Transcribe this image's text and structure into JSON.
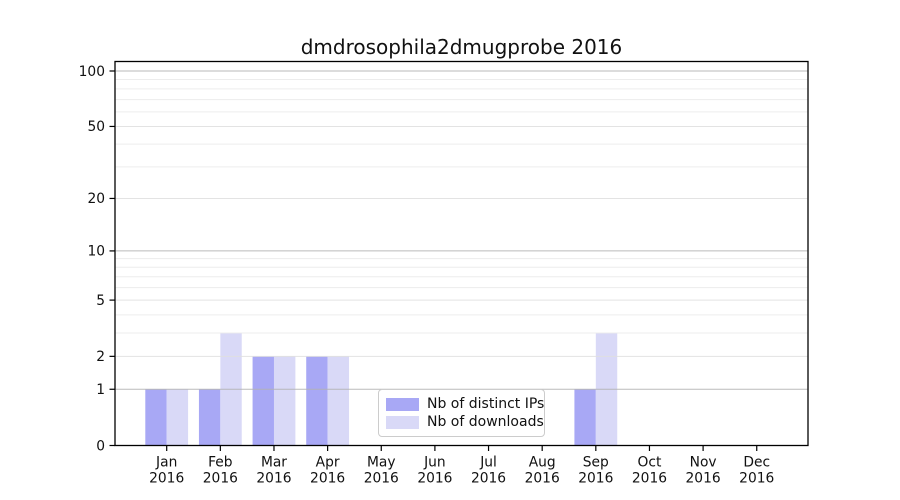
{
  "figure": {
    "background": "#ffffff"
  },
  "chart_data": {
    "type": "bar",
    "title": "dmdrosophila2dmugprobe 2016",
    "categories": [
      "Jan",
      "Feb",
      "Mar",
      "Apr",
      "May",
      "Jun",
      "Jul",
      "Aug",
      "Sep",
      "Oct",
      "Nov",
      "Dec"
    ],
    "category_year_label": "2016",
    "series": [
      {
        "name": "Nb of distinct IPs",
        "color": "#a8a8f5",
        "values": [
          1,
          1,
          2,
          2,
          0,
          0,
          0,
          0,
          1,
          0,
          0,
          0
        ]
      },
      {
        "name": "Nb of downloads",
        "color": "#d9d9f7",
        "values": [
          1,
          3,
          2,
          2,
          0,
          0,
          0,
          0,
          3,
          0,
          0,
          0
        ]
      }
    ],
    "y_scale": "log10(1+value)",
    "y_ticks": [
      0,
      1,
      2,
      5,
      10,
      20,
      50,
      100
    ],
    "y_minor_gridlines": [
      3,
      4,
      6,
      7,
      8,
      9,
      30,
      40,
      60,
      70,
      80,
      90
    ],
    "y_emphasized_gridlines": [
      1,
      10,
      100
    ],
    "ylim": [
      0,
      112
    ],
    "xlabel": "",
    "ylabel": "",
    "grid": "horizontal",
    "legend_position": "lower center"
  },
  "legend": {
    "items": [
      {
        "label": "Nb of distinct IPs"
      },
      {
        "label": "Nb of downloads"
      }
    ]
  },
  "colors": {
    "bar_distinct_ips": "#a8a8f5",
    "bar_downloads": "#d9d9f7",
    "spine": "#000000",
    "tick_text": "#111111",
    "grid_minor": "#ebebeb",
    "grid_major": "#e0e0e0",
    "grid_emphasized": "#b3b3b3",
    "legend_border": "#cccccc"
  }
}
